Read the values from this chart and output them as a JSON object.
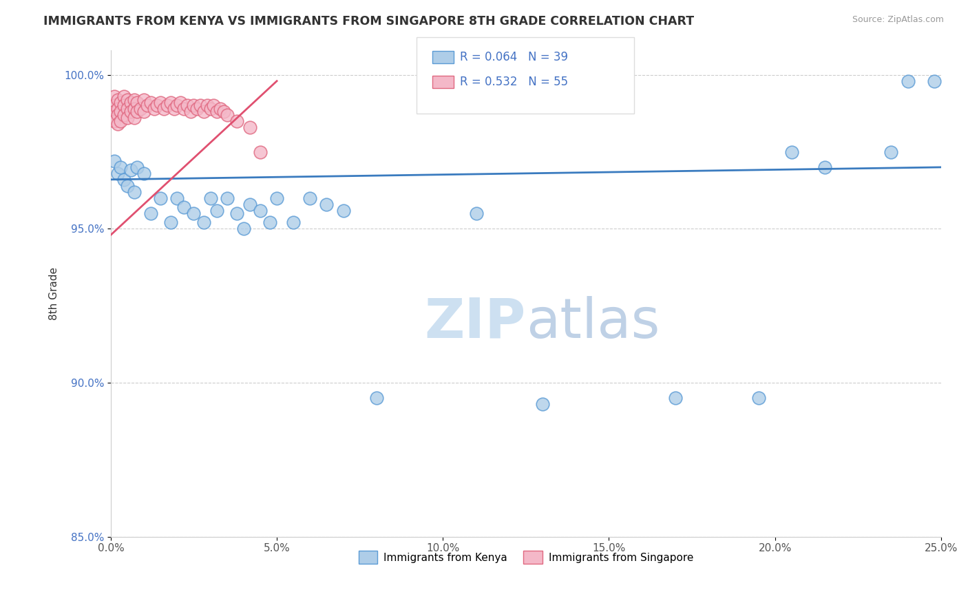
{
  "title": "IMMIGRANTS FROM KENYA VS IMMIGRANTS FROM SINGAPORE 8TH GRADE CORRELATION CHART",
  "source": "Source: ZipAtlas.com",
  "ylabel": "8th Grade",
  "xlim": [
    0.0,
    0.25
  ],
  "ylim": [
    0.875,
    1.008
  ],
  "xticks": [
    0.0,
    0.05,
    0.1,
    0.15,
    0.2,
    0.25
  ],
  "xticklabels": [
    "0.0%",
    "5.0%",
    "10.0%",
    "15.0%",
    "20.0%",
    "25.0%"
  ],
  "yticks": [
    0.85,
    0.9,
    0.95,
    1.0
  ],
  "yticklabels": [
    "85.0%",
    "90.0%",
    "95.0%",
    "100.0%"
  ],
  "kenya_color": "#aecde8",
  "kenya_edge": "#5b9bd5",
  "singapore_color": "#f4b8c8",
  "singapore_edge": "#e06880",
  "trend_blue": "#3a7bbf",
  "trend_pink": "#e05070",
  "legend_R_kenya": "R = 0.064",
  "legend_N_kenya": "N = 39",
  "legend_R_singapore": "R = 0.532",
  "legend_N_singapore": "N = 55",
  "kenya_x": [
    0.001,
    0.002,
    0.003,
    0.004,
    0.005,
    0.006,
    0.007,
    0.008,
    0.01,
    0.012,
    0.015,
    0.018,
    0.02,
    0.022,
    0.025,
    0.028,
    0.03,
    0.032,
    0.035,
    0.038,
    0.04,
    0.042,
    0.045,
    0.048,
    0.05,
    0.055,
    0.06,
    0.065,
    0.07,
    0.08,
    0.11,
    0.13,
    0.17,
    0.195,
    0.205,
    0.215,
    0.235,
    0.24,
    0.248
  ],
  "kenya_y": [
    0.972,
    0.968,
    0.97,
    0.966,
    0.964,
    0.969,
    0.962,
    0.97,
    0.968,
    0.955,
    0.96,
    0.952,
    0.96,
    0.957,
    0.955,
    0.952,
    0.96,
    0.956,
    0.96,
    0.955,
    0.95,
    0.958,
    0.956,
    0.952,
    0.96,
    0.952,
    0.96,
    0.958,
    0.956,
    0.895,
    0.955,
    0.893,
    0.895,
    0.895,
    0.975,
    0.97,
    0.975,
    0.998,
    0.998
  ],
  "singapore_x": [
    0.001,
    0.001,
    0.001,
    0.001,
    0.002,
    0.002,
    0.002,
    0.002,
    0.003,
    0.003,
    0.003,
    0.004,
    0.004,
    0.004,
    0.005,
    0.005,
    0.005,
    0.006,
    0.006,
    0.007,
    0.007,
    0.007,
    0.008,
    0.008,
    0.009,
    0.01,
    0.01,
    0.011,
    0.012,
    0.013,
    0.014,
    0.015,
    0.016,
    0.017,
    0.018,
    0.019,
    0.02,
    0.021,
    0.022,
    0.023,
    0.024,
    0.025,
    0.026,
    0.027,
    0.028,
    0.029,
    0.03,
    0.031,
    0.032,
    0.033,
    0.034,
    0.035,
    0.038,
    0.042,
    0.045
  ],
  "singapore_y": [
    0.993,
    0.99,
    0.988,
    0.985,
    0.992,
    0.989,
    0.987,
    0.984,
    0.991,
    0.988,
    0.985,
    0.993,
    0.99,
    0.987,
    0.992,
    0.989,
    0.986,
    0.991,
    0.988,
    0.992,
    0.989,
    0.986,
    0.991,
    0.988,
    0.989,
    0.992,
    0.988,
    0.99,
    0.991,
    0.989,
    0.99,
    0.991,
    0.989,
    0.99,
    0.991,
    0.989,
    0.99,
    0.991,
    0.989,
    0.99,
    0.988,
    0.99,
    0.989,
    0.99,
    0.988,
    0.99,
    0.989,
    0.99,
    0.988,
    0.989,
    0.988,
    0.987,
    0.985,
    0.983,
    0.975
  ]
}
